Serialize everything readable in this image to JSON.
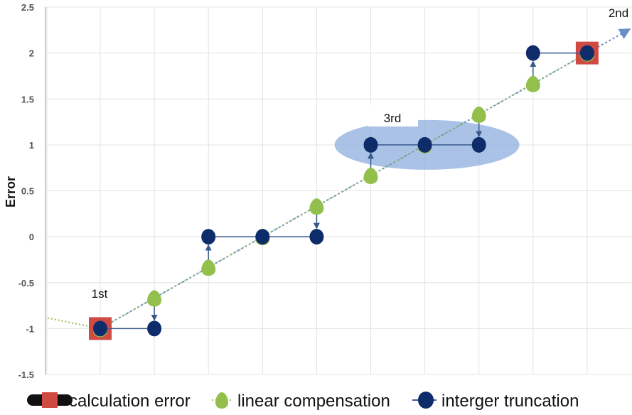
{
  "chart_data": {
    "type": "line",
    "title": "",
    "xlabel": "",
    "ylabel": "Error",
    "ylim": [
      -1.5,
      2.5
    ],
    "yticks": [
      "2.5",
      "2",
      "1.5",
      "1",
      "0.5",
      "0",
      "-0.5",
      "-1",
      "-1.5"
    ],
    "grid": true,
    "legend_position": "bottom",
    "x": [
      0,
      1,
      2,
      3,
      4,
      5,
      6,
      7,
      8,
      9
    ],
    "series": [
      {
        "name": "calculation error",
        "values": [
          -1,
          null,
          null,
          null,
          null,
          null,
          null,
          null,
          null,
          2
        ],
        "color": "#cf4a43"
      },
      {
        "name": "linear compensation",
        "values": [
          -1,
          -0.667,
          -0.333,
          0,
          0.333,
          0.667,
          1,
          1.333,
          1.667,
          2
        ],
        "color": "#93c04c"
      },
      {
        "name": "interger truncation",
        "values": [
          -1,
          -1,
          0,
          0,
          0,
          1,
          1,
          1,
          2,
          2
        ],
        "color": "#0e2b6a"
      }
    ],
    "annotations": [
      "1st",
      "2nd",
      "3rd"
    ]
  },
  "colors": {
    "trend_line": "#6a8fc7",
    "highlight_ellipse": "#8eadde",
    "grid": "#e3e3e3",
    "axis": "#9a9a9a"
  }
}
